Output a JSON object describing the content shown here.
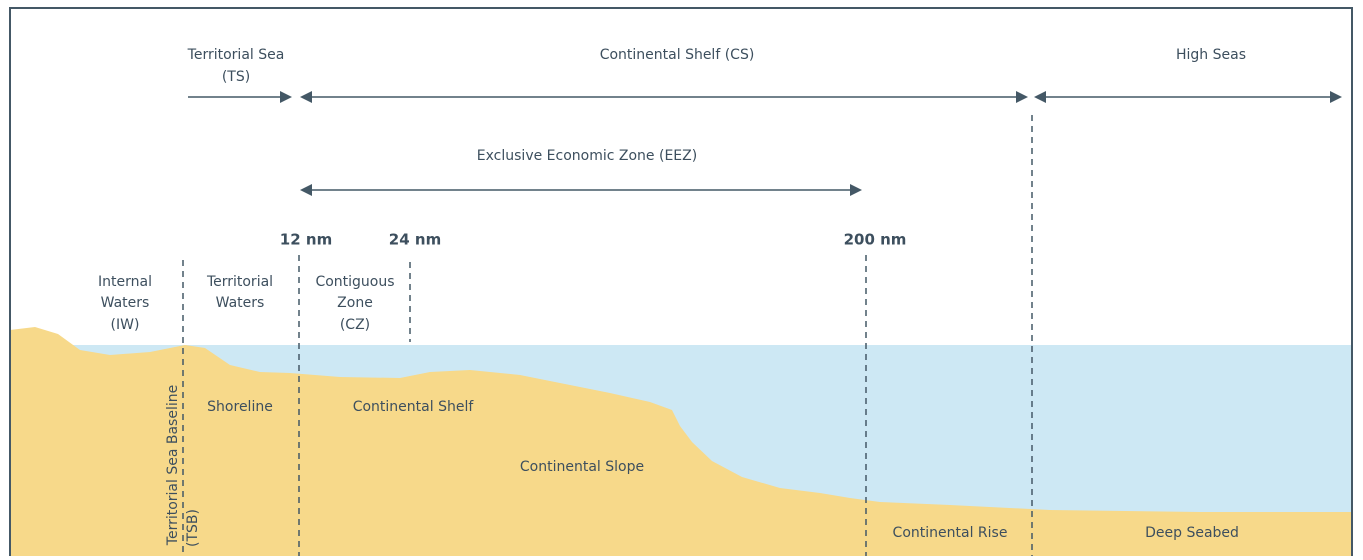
{
  "zones_top": {
    "territorial_sea": [
      "Territorial Sea",
      "(TS)"
    ],
    "continental_shelf": "Continental Shelf (CS)",
    "high_seas": "High Seas",
    "eez": "Exclusive Economic Zone (EEZ)"
  },
  "markers": [
    "12 nm",
    "24 nm",
    "200 nm"
  ],
  "waters": {
    "internal": [
      "Internal",
      "Waters",
      "(IW)"
    ],
    "territorial": [
      "Territorial",
      "Waters"
    ],
    "contiguous": [
      "Contiguous",
      "Zone",
      "(CZ)"
    ]
  },
  "baseline": [
    "Territorial Sea Baseline",
    "(TSB)"
  ],
  "seabed": [
    "Shoreline",
    "Continental Shelf",
    "Continental Slope",
    "Continental Rise",
    "Deep Seabed"
  ]
}
